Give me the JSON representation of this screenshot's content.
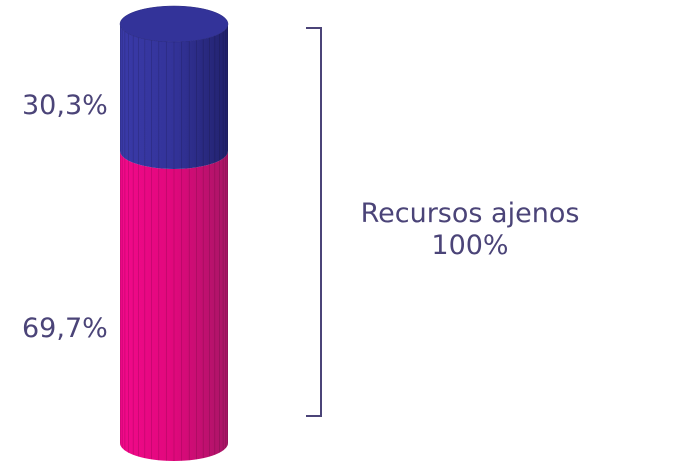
{
  "chart_data": {
    "type": "bar",
    "categories": [
      ""
    ],
    "series": [
      {
        "values": [
          69.7
        ],
        "label": "69,7%",
        "color": "#E6007E"
      },
      {
        "values": [
          30.3
        ],
        "label": "30,3%",
        "color": "#333399"
      }
    ],
    "stacked": true,
    "total_label": {
      "line1": "Recursos ajenos",
      "line2": "100%"
    }
  },
  "colors": {
    "text": "#4B4478",
    "bracket": "#4B4478"
  }
}
